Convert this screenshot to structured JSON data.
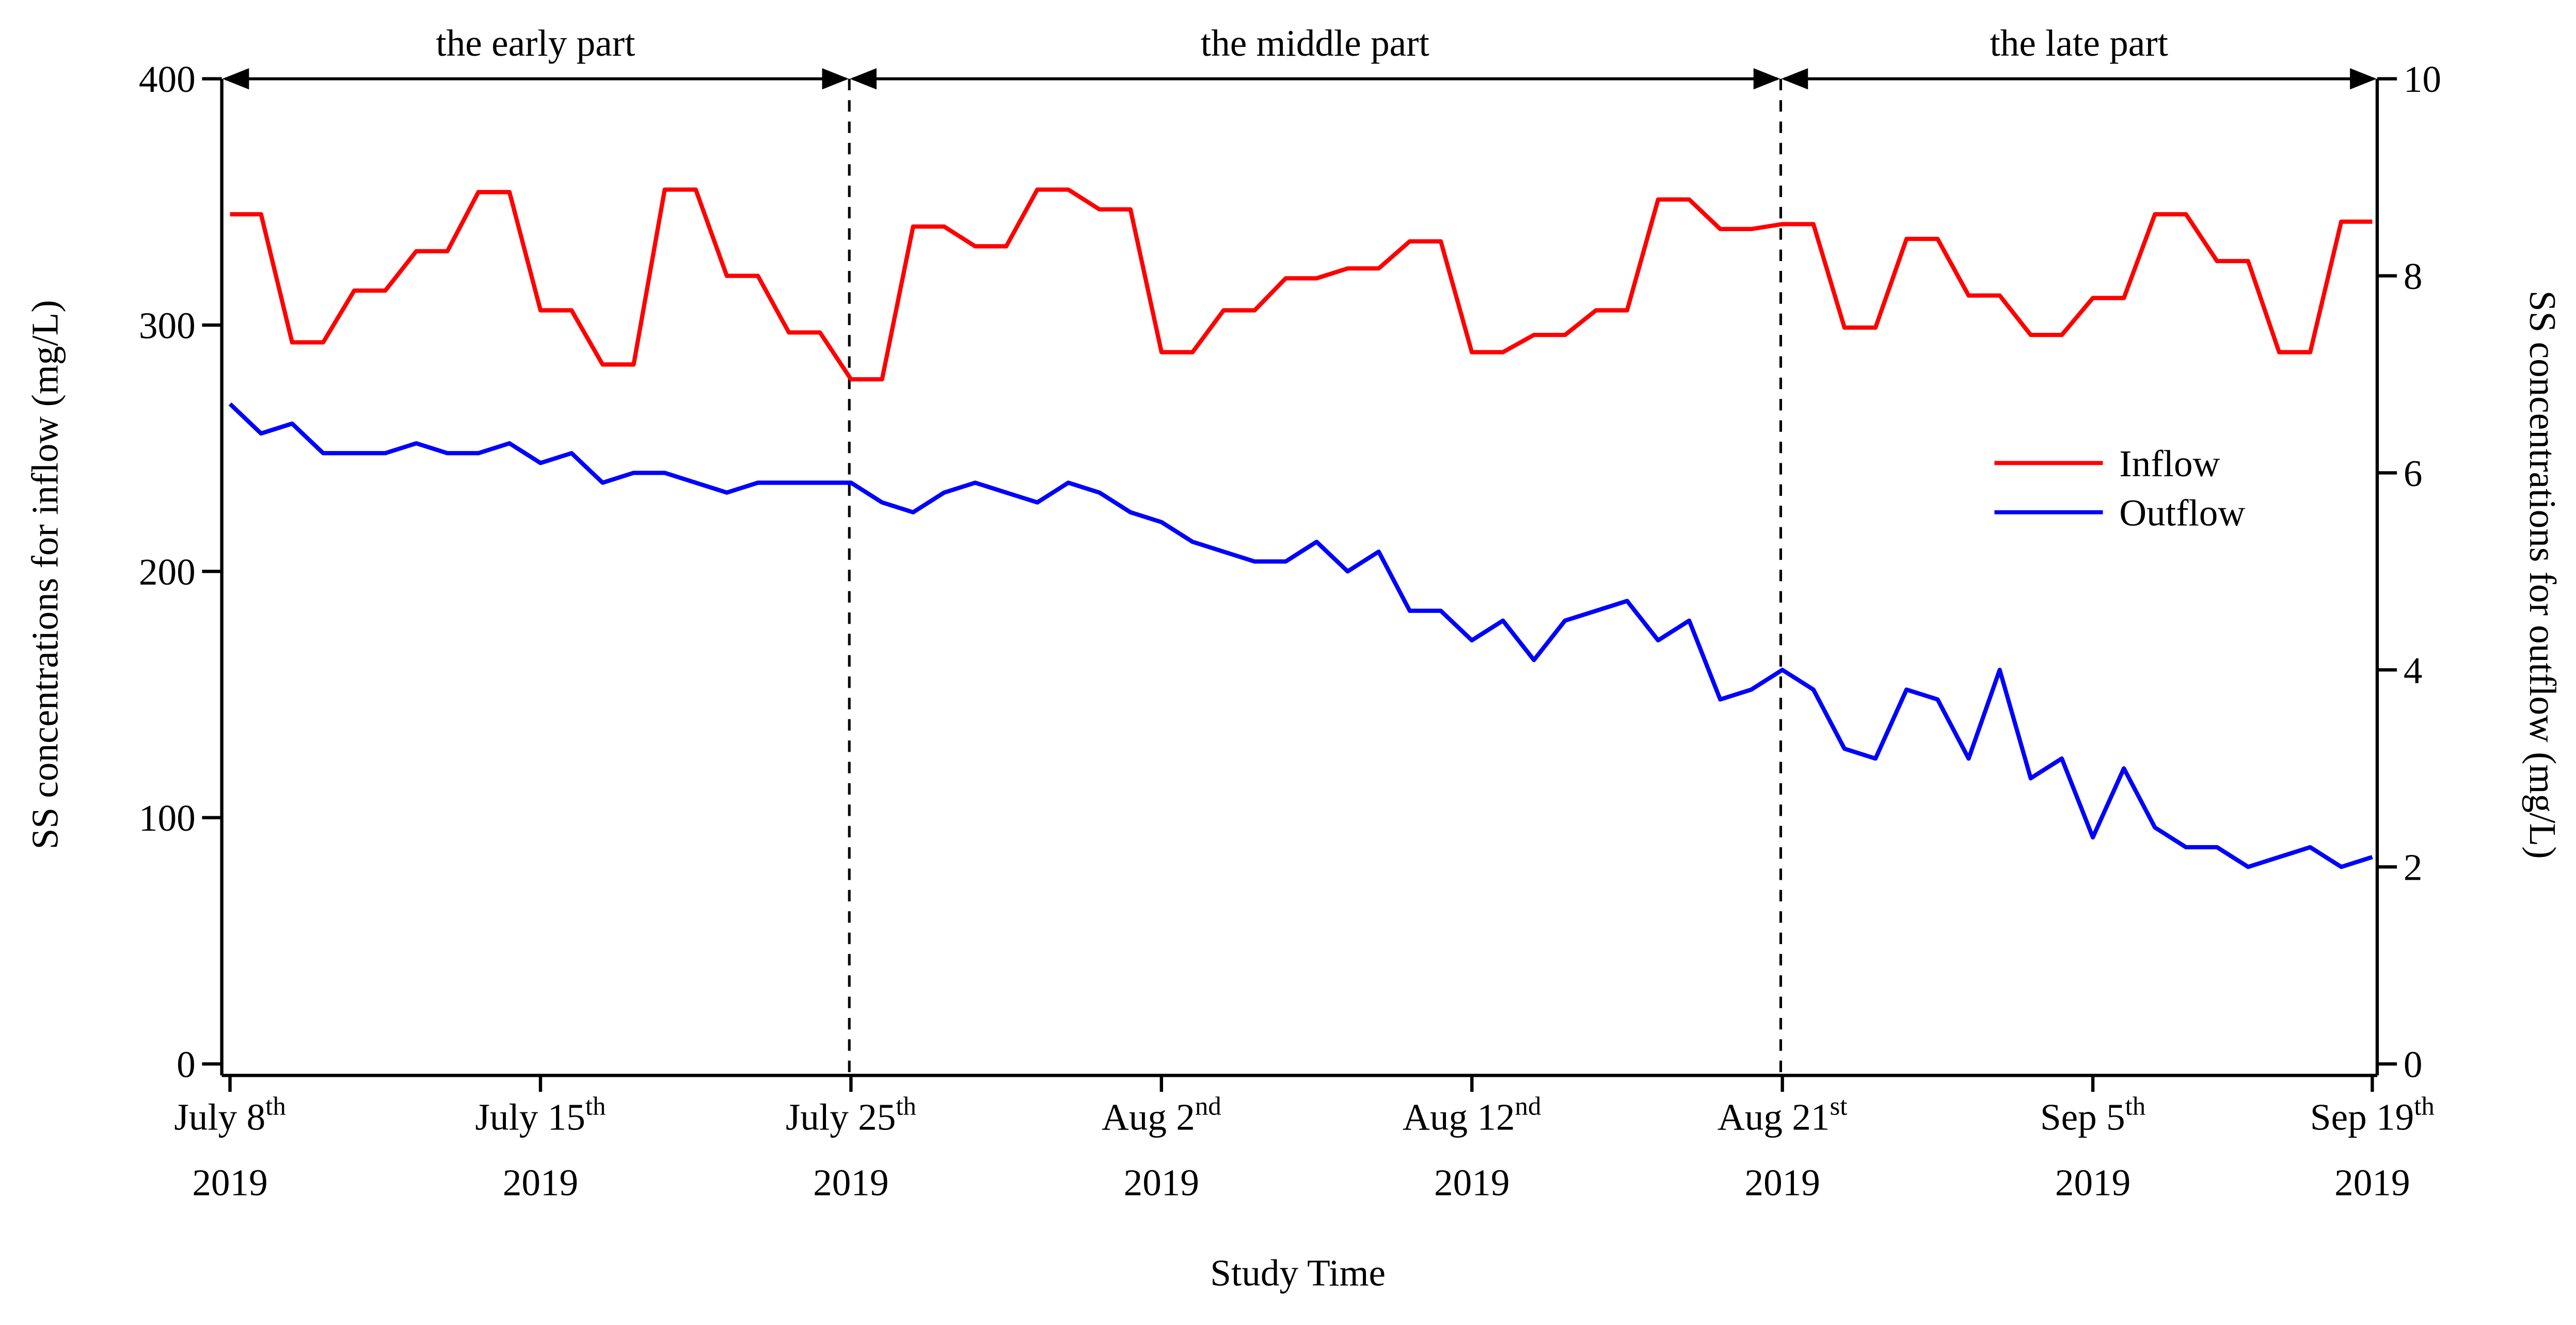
{
  "chart_data": {
    "type": "line",
    "xlabel": "Study Time",
    "ylabel_left": "SS concentrations for inflow (mg/L)",
    "ylabel_right": "SS concentrations for outflow (mg/L)",
    "ylim_left": [
      0,
      400
    ],
    "ylim_right": [
      0,
      10
    ],
    "yticks_left": [
      "0",
      "100",
      "200",
      "300",
      "400"
    ],
    "yticks_right": [
      "0",
      "2",
      "4",
      "6",
      "8",
      "10"
    ],
    "grid": false,
    "legend_position": "center-right",
    "x_ticks": [
      {
        "index": 0,
        "main": "July 8",
        "sup": "th",
        "year": "2019"
      },
      {
        "index": 10,
        "main": "July 15",
        "sup": "th",
        "year": "2019"
      },
      {
        "index": 20,
        "main": "July 25",
        "sup": "th",
        "year": "2019"
      },
      {
        "index": 30,
        "main": "Aug 2",
        "sup": "nd",
        "year": "2019"
      },
      {
        "index": 40,
        "main": "Aug 12",
        "sup": "nd",
        "year": "2019"
      },
      {
        "index": 50,
        "main": "Aug 21",
        "sup": "st",
        "year": "2019"
      },
      {
        "index": 60,
        "main": "Sep 5",
        "sup": "th",
        "year": "2019"
      },
      {
        "index": 69,
        "main": "Sep 19",
        "sup": "th",
        "year": "2019"
      }
    ],
    "periods": [
      {
        "label": "the early part",
        "from": 0,
        "to": 20
      },
      {
        "label": "the middle part",
        "from": 20,
        "to": 50
      },
      {
        "label": "the late part",
        "from": 50,
        "to": 69
      }
    ],
    "dividers": [
      20,
      50
    ],
    "series": [
      {
        "name": "Inflow",
        "axis": "left",
        "color": "#ff0000",
        "values": [
          345,
          345,
          293,
          293,
          314,
          314,
          330,
          330,
          354,
          354,
          306,
          306,
          284,
          284,
          355,
          355,
          320,
          320,
          297,
          297,
          278,
          278,
          340,
          340,
          332,
          332,
          355,
          355,
          347,
          347,
          289,
          289,
          306,
          306,
          319,
          319,
          323,
          323,
          334,
          334,
          289,
          289,
          296,
          296,
          306,
          306,
          351,
          351,
          339,
          339,
          341,
          341,
          299,
          299,
          335,
          335,
          312,
          312,
          296,
          296,
          311,
          311,
          345,
          345,
          326,
          326,
          289,
          289,
          342,
          342
        ]
      },
      {
        "name": "Outflow",
        "axis": "right",
        "color": "#0000ff",
        "values": [
          6.7,
          6.4,
          6.5,
          6.2,
          6.2,
          6.2,
          6.3,
          6.2,
          6.2,
          6.3,
          6.1,
          6.2,
          5.9,
          6.0,
          6.0,
          5.9,
          5.8,
          5.9,
          5.9,
          5.9,
          5.9,
          5.7,
          5.6,
          5.8,
          5.9,
          5.8,
          5.7,
          5.9,
          5.8,
          5.6,
          5.5,
          5.3,
          5.2,
          5.1,
          5.1,
          5.3,
          5.0,
          5.2,
          4.6,
          4.6,
          4.3,
          4.5,
          4.1,
          4.5,
          4.6,
          4.7,
          4.3,
          4.5,
          3.7,
          3.8,
          4.0,
          3.8,
          3.2,
          3.1,
          3.8,
          3.7,
          3.1,
          4.0,
          2.9,
          3.1,
          2.3,
          3.0,
          2.4,
          2.2,
          2.2,
          2.0,
          2.1,
          2.2,
          2.0,
          2.1
        ]
      }
    ]
  }
}
